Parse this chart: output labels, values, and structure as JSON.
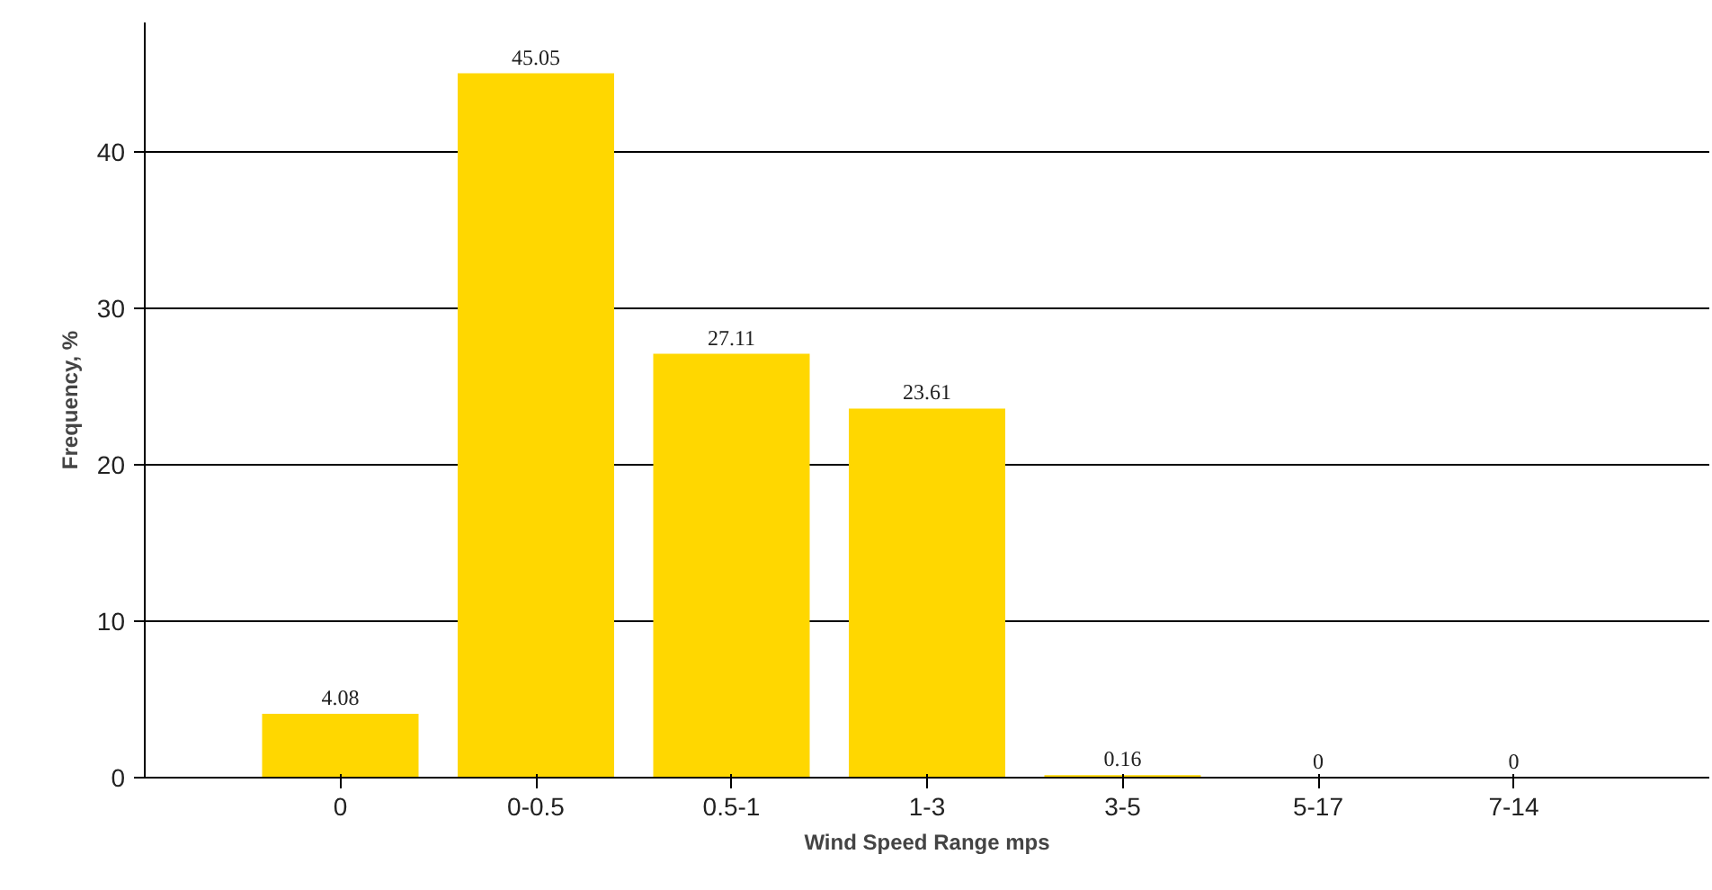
{
  "chart_data": {
    "type": "bar",
    "xlabel": "Wind Speed Range mps",
    "ylabel": "Frequency, %",
    "categories": [
      "0",
      "0-0.5",
      "0.5-1",
      "1-3",
      "3-5",
      "5-17",
      "7-14"
    ],
    "values": [
      4.08,
      45.05,
      27.11,
      23.61,
      0.16,
      0,
      0
    ],
    "color": "#ffd700",
    "ylim": [
      0,
      48.3
    ],
    "yticks": [
      0,
      10,
      20,
      30,
      40
    ],
    "grid": "y",
    "data_labels": true
  }
}
